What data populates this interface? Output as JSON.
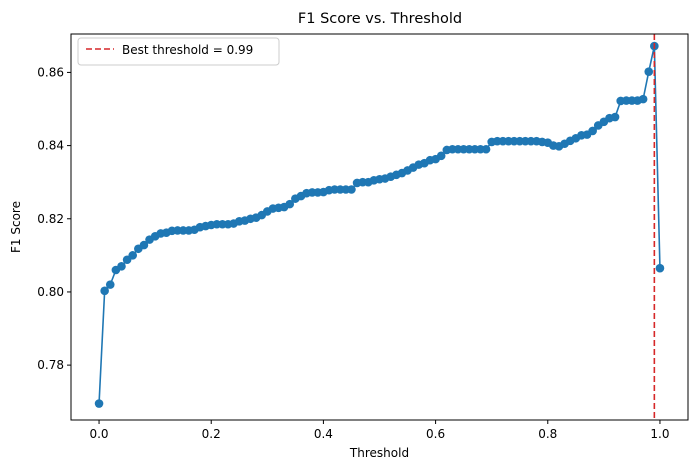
{
  "chart_data": {
    "type": "line",
    "title": "F1 Score vs. Threshold",
    "xlabel": "Threshold",
    "ylabel": "F1 Score",
    "xlim": [
      -0.05,
      1.05
    ],
    "ylim": [
      0.765,
      0.8705
    ],
    "xticks": [
      0.0,
      0.2,
      0.4,
      0.6,
      0.8,
      1.0
    ],
    "xtick_labels": [
      "0.0",
      "0.2",
      "0.4",
      "0.6",
      "0.8",
      "1.0"
    ],
    "yticks": [
      0.78,
      0.8,
      0.82,
      0.84,
      0.86
    ],
    "ytick_labels": [
      "0.78",
      "0.80",
      "0.82",
      "0.84",
      "0.86"
    ],
    "grid": false,
    "legend_position": "top-left",
    "series": [
      {
        "color": "#1f77b4",
        "marker": "circle",
        "x": [
          0.0,
          0.01,
          0.02,
          0.03,
          0.04,
          0.05,
          0.06,
          0.07,
          0.08,
          0.09,
          0.1,
          0.11,
          0.12,
          0.13,
          0.14,
          0.15,
          0.16,
          0.17,
          0.18,
          0.19,
          0.2,
          0.21,
          0.22,
          0.23,
          0.24,
          0.25,
          0.26,
          0.27,
          0.28,
          0.29,
          0.3,
          0.31,
          0.32,
          0.33,
          0.34,
          0.35,
          0.36,
          0.37,
          0.38,
          0.39,
          0.4,
          0.41,
          0.42,
          0.43,
          0.44,
          0.45,
          0.46,
          0.47,
          0.48,
          0.49,
          0.5,
          0.51,
          0.52,
          0.53,
          0.54,
          0.55,
          0.56,
          0.57,
          0.58,
          0.59,
          0.6,
          0.61,
          0.62,
          0.63,
          0.64,
          0.65,
          0.66,
          0.67,
          0.68,
          0.69,
          0.7,
          0.71,
          0.72,
          0.73,
          0.74,
          0.75,
          0.76,
          0.77,
          0.78,
          0.79,
          0.8,
          0.81,
          0.82,
          0.83,
          0.84,
          0.85,
          0.86,
          0.87,
          0.88,
          0.89,
          0.9,
          0.91,
          0.92,
          0.93,
          0.94,
          0.95,
          0.96,
          0.97,
          0.98,
          0.99,
          1.0
        ],
        "y": [
          0.7695,
          0.8003,
          0.802,
          0.806,
          0.807,
          0.8088,
          0.81,
          0.8118,
          0.8128,
          0.8143,
          0.8152,
          0.816,
          0.8162,
          0.8167,
          0.8168,
          0.8168,
          0.8168,
          0.817,
          0.8177,
          0.818,
          0.8183,
          0.8185,
          0.8185,
          0.8185,
          0.8187,
          0.8193,
          0.8195,
          0.82,
          0.8203,
          0.821,
          0.822,
          0.8228,
          0.823,
          0.8232,
          0.824,
          0.8255,
          0.8262,
          0.827,
          0.8272,
          0.8272,
          0.8273,
          0.8278,
          0.828,
          0.828,
          0.828,
          0.828,
          0.8298,
          0.83,
          0.83,
          0.8305,
          0.8308,
          0.831,
          0.8315,
          0.832,
          0.8325,
          0.8332,
          0.834,
          0.8348,
          0.8352,
          0.836,
          0.8363,
          0.8372,
          0.8388,
          0.839,
          0.839,
          0.839,
          0.839,
          0.839,
          0.839,
          0.839,
          0.841,
          0.8412,
          0.8412,
          0.8412,
          0.8412,
          0.8412,
          0.8412,
          0.8412,
          0.8412,
          0.841,
          0.8408,
          0.84,
          0.8398,
          0.8405,
          0.8413,
          0.842,
          0.8428,
          0.843,
          0.844,
          0.8455,
          0.8465,
          0.8475,
          0.8478,
          0.8522,
          0.8523,
          0.8523,
          0.8523,
          0.8527,
          0.8602,
          0.8672,
          0.8065
        ]
      }
    ],
    "reference_line": {
      "orientation": "vertical",
      "x": 0.99,
      "color": "#d62728",
      "style": "dashed",
      "label": "Best threshold = 0.99"
    }
  }
}
